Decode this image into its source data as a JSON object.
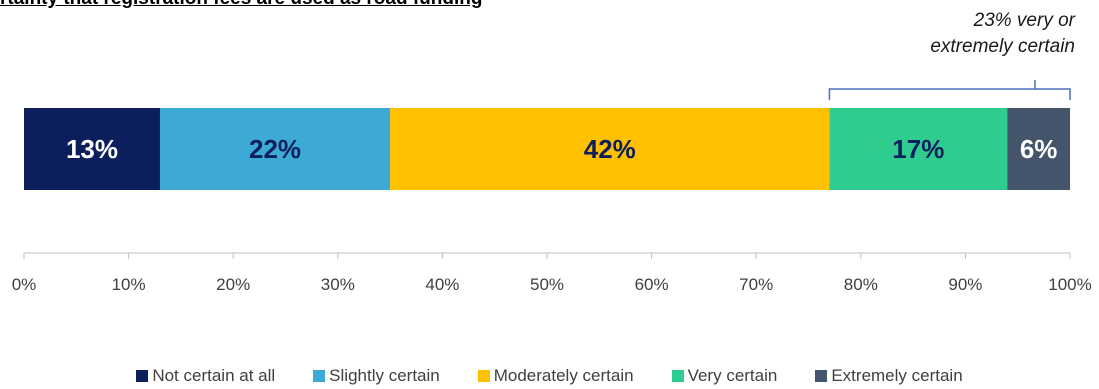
{
  "chart_data": {
    "type": "bar",
    "orientation": "horizontal-stacked-100",
    "title": "rtainty that registration fees are used as road funding",
    "xlabel": "",
    "ylabel": "",
    "xlim": [
      0,
      100
    ],
    "x_ticks": [
      "0%",
      "10%",
      "20%",
      "30%",
      "40%",
      "50%",
      "60%",
      "70%",
      "80%",
      "90%",
      "100%"
    ],
    "grid": false,
    "legend_position": "bottom",
    "annotation": {
      "lines": [
        "23% very or",
        "extremely certain"
      ],
      "brackets_series": [
        "Very certain",
        "Extremely certain"
      ]
    },
    "series": [
      {
        "name": "Not certain at all",
        "values": [
          13
        ],
        "label": "13%",
        "color": "#0c1f5c",
        "label_color": "#ffffff"
      },
      {
        "name": "Slightly certain",
        "values": [
          22
        ],
        "label": "22%",
        "color": "#3da9d6",
        "label_color": "#0c1f5c"
      },
      {
        "name": "Moderately certain",
        "values": [
          42
        ],
        "label": "42%",
        "color": "#ffc000",
        "label_color": "#0c1f5c"
      },
      {
        "name": "Very certain",
        "values": [
          17
        ],
        "label": "17%",
        "color": "#2ecc8f",
        "label_color": "#0c1f5c"
      },
      {
        "name": "Extremely certain",
        "values": [
          6
        ],
        "label": "6%",
        "color": "#44546a",
        "label_color": "#ffffff"
      }
    ]
  }
}
